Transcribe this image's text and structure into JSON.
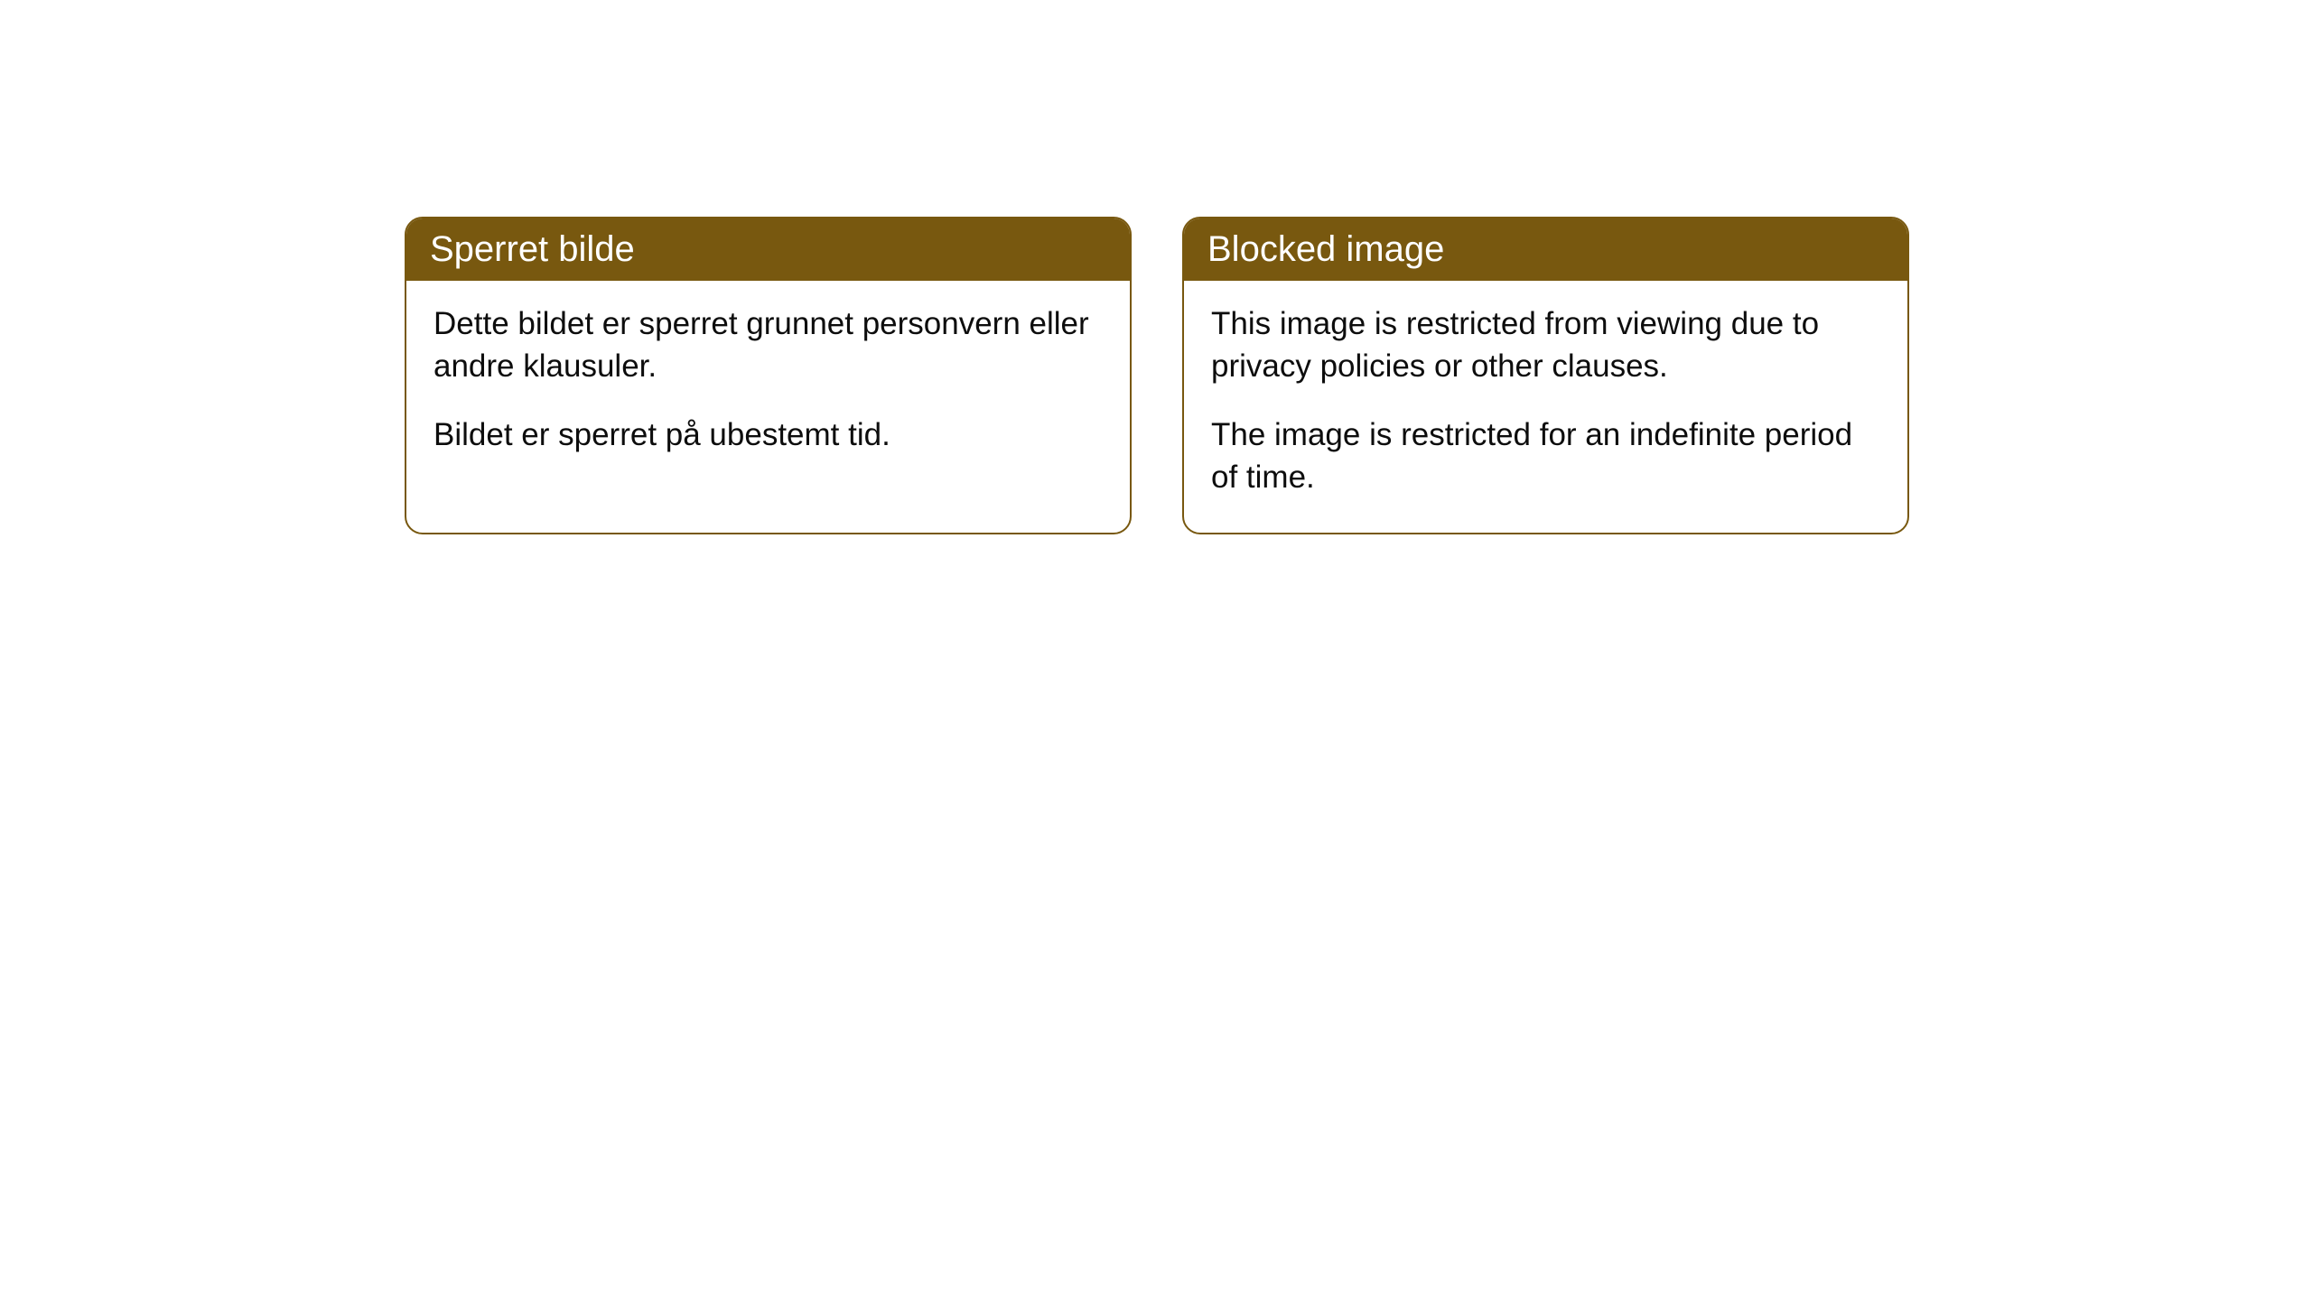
{
  "cards": [
    {
      "title": "Sperret bilde",
      "paragraph1": "Dette bildet er sperret grunnet personvern eller andre klausuler.",
      "paragraph2": "Bildet er sperret på ubestemt tid."
    },
    {
      "title": "Blocked image",
      "paragraph1": "This image is restricted from viewing due to privacy policies or other clauses.",
      "paragraph2": "The image is restricted for an indefinite period of time."
    }
  ],
  "style": {
    "header_background_color": "#78580f",
    "header_text_color": "#ffffff",
    "border_color": "#78580f",
    "body_background_color": "#ffffff",
    "body_text_color": "#0d0d0d",
    "border_radius": 20,
    "header_fontsize": 40,
    "body_fontsize": 35
  }
}
